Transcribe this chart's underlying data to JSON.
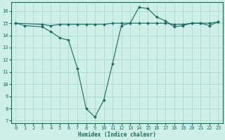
{
  "xlabel": "Humidex (Indice chaleur)",
  "ylabel": "",
  "bg_color": "#ceeee8",
  "line_color": "#1a6b5e",
  "grid_color": "#a8d8d0",
  "xlim": [
    -0.5,
    23.5
  ],
  "ylim": [
    6.8,
    16.7
  ],
  "yticks": [
    7,
    8,
    9,
    10,
    11,
    12,
    13,
    14,
    15,
    16
  ],
  "xticks": [
    0,
    1,
    2,
    3,
    4,
    5,
    6,
    7,
    8,
    9,
    10,
    11,
    12,
    13,
    14,
    15,
    16,
    17,
    18,
    19,
    20,
    21,
    22,
    23
  ],
  "line1_x": [
    0,
    1,
    3,
    4,
    5,
    6,
    7,
    8,
    9,
    10,
    11,
    12,
    13,
    14,
    15,
    16,
    17,
    18,
    19,
    20,
    21,
    22,
    23
  ],
  "line1_y": [
    15.0,
    14.8,
    14.7,
    14.3,
    13.8,
    13.6,
    11.3,
    8.0,
    7.3,
    8.7,
    11.7,
    14.8,
    15.0,
    16.3,
    16.2,
    15.5,
    15.2,
    14.7,
    14.8,
    15.0,
    15.0,
    14.8,
    15.1
  ],
  "line2_x": [
    0,
    3,
    4,
    5,
    6,
    7,
    8,
    9,
    10,
    11,
    12,
    13,
    14,
    15,
    16,
    17,
    18,
    19,
    20,
    21,
    22,
    23
  ],
  "line2_y": [
    15.0,
    14.9,
    14.8,
    14.9,
    14.9,
    14.9,
    14.9,
    14.9,
    14.9,
    15.0,
    15.0,
    15.0,
    15.0,
    15.0,
    15.0,
    15.0,
    14.9,
    14.9,
    15.0,
    15.0,
    15.0,
    15.1
  ],
  "xlabel_fontsize": 5.5,
  "tick_fontsize": 5.0
}
